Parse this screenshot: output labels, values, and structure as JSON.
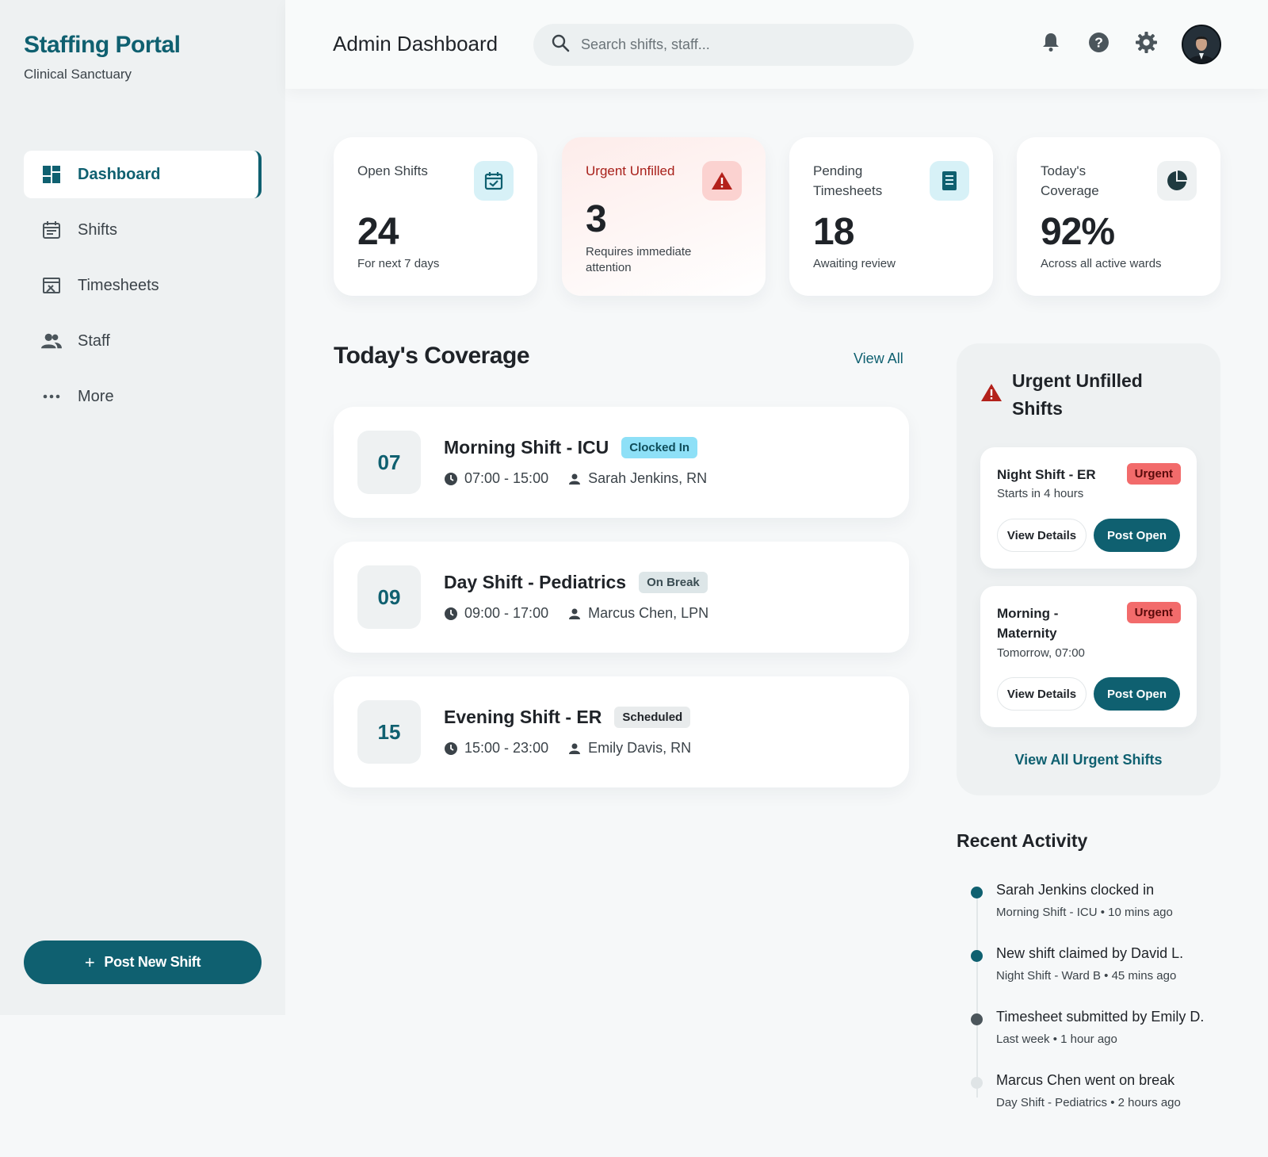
{
  "sidebar": {
    "brand_title": "Staffing Portal",
    "brand_sub": "Clinical Sanctuary",
    "items": [
      {
        "label": "Dashboard",
        "icon": "dashboard-icon",
        "active": true
      },
      {
        "label": "Shifts",
        "icon": "calendar-icon"
      },
      {
        "label": "Timesheets",
        "icon": "timesheet-icon"
      },
      {
        "label": "Staff",
        "icon": "people-icon"
      },
      {
        "label": "More",
        "icon": "more-icon"
      }
    ],
    "post_button": "Post New Shift",
    "post_button_icon": "+"
  },
  "header": {
    "title": "Admin Dashboard",
    "search_placeholder": "Search shifts, staff..."
  },
  "stats": [
    {
      "label": "Open Shifts",
      "value": "24",
      "sub": "For next 7 days",
      "icon": "calendar-check-icon"
    },
    {
      "label": "Urgent Unfilled",
      "value": "3",
      "sub": "Requires immediate attention",
      "icon": "warning-icon"
    },
    {
      "label": "Pending Timesheets",
      "value": "18",
      "sub": "Awaiting review",
      "icon": "receipt-icon"
    },
    {
      "label": "Today's Coverage",
      "value": "92%",
      "sub": "Across all active wards",
      "icon": "pie-chart-icon"
    }
  ],
  "coverage": {
    "title": "Today's Coverage",
    "view_all": "View All",
    "shifts": [
      {
        "day": "07",
        "name": "Morning Shift - ICU",
        "status": "Clocked In",
        "time": "07:00 - 15:00",
        "staff": "Sarah Jenkins, RN"
      },
      {
        "day": "09",
        "name": "Day Shift - Pediatrics",
        "status": "On Break",
        "time": "09:00 - 17:00",
        "staff": "Marcus Chen, LPN"
      },
      {
        "day": "15",
        "name": "Evening Shift - ER",
        "status": "Scheduled",
        "time": "15:00 - 23:00",
        "staff": "Emily Davis, RN"
      }
    ]
  },
  "urgent": {
    "title": "Urgent Unfilled Shifts",
    "cards": [
      {
        "name": "Night Shift - ER",
        "badge": "Urgent",
        "sub": "Starts in 4 hours",
        "details": "View Details",
        "post": "Post Open"
      },
      {
        "name": "Morning - Maternity",
        "badge": "Urgent",
        "sub": "Tomorrow, 07:00",
        "details": "View Details",
        "post": "Post Open"
      }
    ],
    "view_all": "View All Urgent Shifts"
  },
  "activity": {
    "title": "Recent Activity",
    "items": [
      {
        "text": "Sarah Jenkins clocked in",
        "sub": "Morning Shift - ICU • 10 mins ago"
      },
      {
        "text": "New shift claimed by David L.",
        "sub": "Night Shift - Ward B • 45 mins ago"
      },
      {
        "text": "Timesheet submitted by Emily D.",
        "sub": "Last week • 1 hour ago"
      },
      {
        "text": "Marcus Chen went on break",
        "sub": "Day Shift - Pediatrics • 2 hours ago"
      }
    ]
  },
  "colors": {
    "primary": "#0f6070",
    "urgent": "#f26b6b",
    "danger_text": "#a8201a",
    "background": "#f6f8f9"
  }
}
